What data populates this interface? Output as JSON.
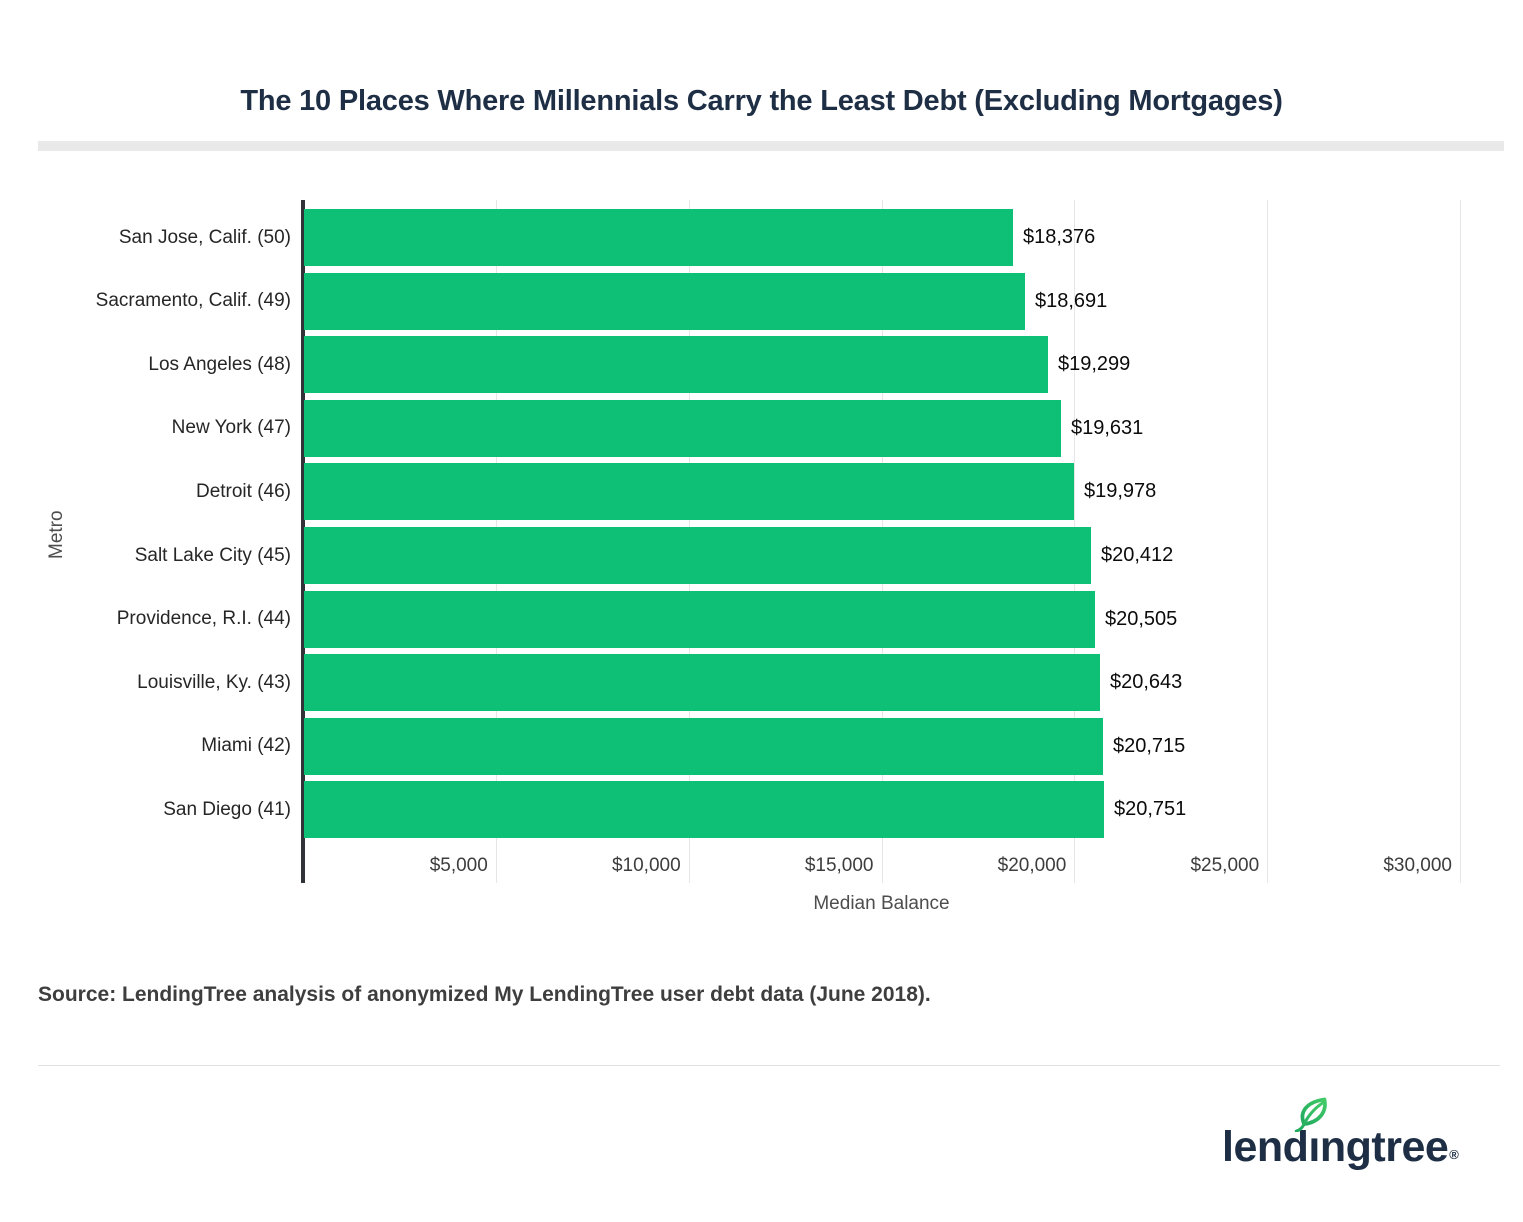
{
  "page": {
    "source_note": "Source: LendingTree analysis of anonymized My LendingTree user debt data (June 2018).",
    "logo": {
      "wordmark_left": "lend",
      "wordmark_i": "ı",
      "wordmark_right": "ngtree",
      "registered_mark": "®"
    }
  },
  "theme": {
    "navy": "#1D2E45",
    "bar_green": "#0DC075",
    "leaf_green_light": "#43CA69",
    "leaf_green_dark": "#1FA95E",
    "gridline": "#E6E6E6",
    "title_band": "#E9E9E9",
    "axis_line": "#303438",
    "text_dark": "#0B0B0B",
    "text_gray": "#4D4D4D",
    "source_gray": "#3E3E3E",
    "divider": "#E1E1E1"
  },
  "chart_data": {
    "type": "bar",
    "orientation": "horizontal",
    "title": "The 10 Places Where Millennials Carry the Least Debt (Excluding Mortgages)",
    "xlabel": "Median Balance",
    "ylabel": "Metro",
    "categories": [
      "San Jose, Calif. (50)",
      "Sacramento, Calif. (49)",
      "Los Angeles (48)",
      "New York (47)",
      "Detroit (46)",
      "Salt Lake City (45)",
      "Providence, R.I. (44)",
      "Louisville, Ky. (43)",
      "Miami (42)",
      "San Diego (41)"
    ],
    "values": [
      18376,
      18691,
      19299,
      19631,
      19978,
      20412,
      20505,
      20643,
      20715,
      20751
    ],
    "value_labels": [
      "$18,376",
      "$18,691",
      "$19,299",
      "$19,631",
      "$19,978",
      "$20,412",
      "$20,505",
      "$20,643",
      "$20,715",
      "$20,751"
    ],
    "xlim": [
      0,
      30000
    ],
    "xticks": [
      5000,
      10000,
      15000,
      20000,
      25000,
      30000
    ],
    "xtick_labels": [
      "$5,000",
      "$10,000",
      "$15,000",
      "$20,000",
      "$25,000",
      "$30,000"
    ],
    "grid": "vertical-only",
    "legend": "none"
  }
}
